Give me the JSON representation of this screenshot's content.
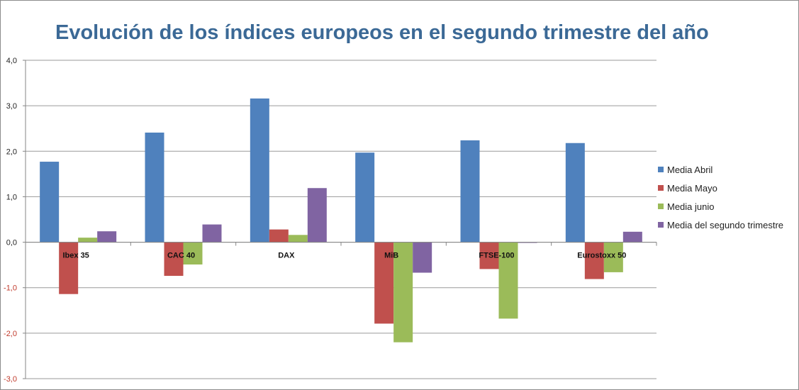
{
  "chart_data": {
    "type": "bar",
    "title": "Evolución de los índices europeos en el segundo trimestre del año",
    "xlabel": "",
    "ylabel": "",
    "ylim": [
      -3.0,
      4.0
    ],
    "yticks": [
      "4,0",
      "3,0",
      "2,0",
      "1,0",
      "0,0",
      "-1,0",
      "-2,0",
      "-3,0"
    ],
    "ytick_values": [
      4,
      3,
      2,
      1,
      0,
      -1,
      -2,
      -3
    ],
    "grid": true,
    "legend_position": "right",
    "categories": [
      "Ibex 35",
      "CAC 40",
      "DAX",
      "MiB",
      "FTSE-100",
      "Eurostoxx 50"
    ],
    "series": [
      {
        "name": "Media Abril",
        "color": "#4f81bd",
        "values": [
          1.77,
          2.41,
          3.16,
          1.97,
          2.24,
          2.18
        ]
      },
      {
        "name": "Media Mayo",
        "color": "#c0504d",
        "values": [
          -1.14,
          -0.74,
          0.28,
          -1.79,
          -0.59,
          -0.81
        ]
      },
      {
        "name": "Media junio",
        "color": "#9bbb59",
        "values": [
          0.1,
          -0.49,
          0.16,
          -2.2,
          -1.68,
          -0.66
        ]
      },
      {
        "name": "Media del segundo trimestre",
        "color": "#8064a2",
        "values": [
          0.24,
          0.39,
          1.19,
          -0.67,
          -0.01,
          0.23
        ]
      }
    ]
  }
}
